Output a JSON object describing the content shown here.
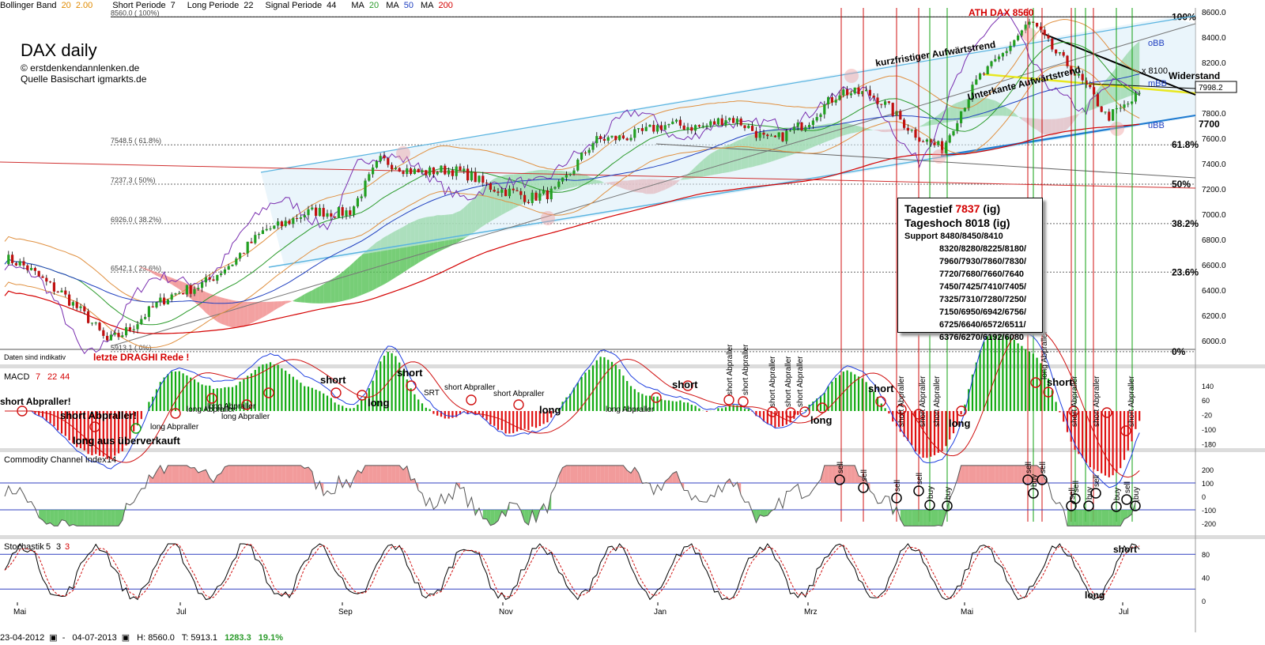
{
  "header": {
    "bb_label": "Bollinger Band",
    "bb_p1": "20",
    "bb_p2": "2.00",
    "short_label": "Short Periode",
    "short_val": "7",
    "long_label": "Long Periode",
    "long_val": "22",
    "signal_label": "Signal Periode",
    "signal_val": "44",
    "ma_label": "MA",
    "ma1": "20",
    "ma2": "50",
    "ma3": "200"
  },
  "title": "DAX daily",
  "credit1": "© erstdenkendannlenken.de",
  "credit2": "Quelle Basischart igmarkts.de",
  "disclaimer": "Daten sind indikativ",
  "ath_label": "ATH DAX 8560",
  "draghi_label": "letzte DRAGHI Rede !",
  "fib_levels": [
    {
      "value": 8560,
      "label": "100%",
      "left_label": "8560.0 ( 100%)"
    },
    {
      "value": 7548.5,
      "label": "61.8%",
      "left_label": "7548.5 ( 61.8%)"
    },
    {
      "value": 7237.3,
      "label": "50%",
      "left_label": "7237.3 ( 50%)"
    },
    {
      "value": 6926.0,
      "label": "38.2%",
      "left_label": "6926.0 ( 38.2%)"
    },
    {
      "value": 6542.1,
      "label": "23.6%",
      "left_label": "6542.1 ( 23.6%)"
    },
    {
      "value": 5913.1,
      "label": "0%",
      "left_label": "5913.1 ( 0%)"
    }
  ],
  "annotations": {
    "trend1": "kurzfristiger Aufwärtstrend",
    "trend2": "Unterkante Aufwärtstrend",
    "resistance": "Widerstand",
    "level_x": "x 8100",
    "level_7700": "7700",
    "price_tag": "7998.2",
    "obb": "oBB",
    "mbb": "mBB",
    "ubb": "uBB"
  },
  "info_box": {
    "low_label": "Tagestief",
    "low_val": "7837",
    "low_src": "(ig)",
    "high_label": "Tageshoch",
    "high_val": "8018",
    "high_src": "(ig)",
    "support_label": "Support",
    "support_lines": [
      "8480/8450/8410",
      "8320/8280/8225/8180/",
      "7960/7930/7860/7830/",
      "7720/7680/7660/7640",
      "7450/7425/7410/7405/",
      "7325/7310/7280/7250/",
      "7150/6950/6942/6756/",
      "6725/6640/6572/6511/",
      "6376/6270/6192/6080"
    ]
  },
  "macd": {
    "label": "MACD",
    "p1": "7",
    "p2": "22",
    "p3": "44",
    "ticks": [
      "140",
      "60",
      "-20",
      "-100",
      "-180"
    ],
    "signals": [
      "short Abpraller!",
      "short Abpraller!",
      "long aus überverkauft",
      "long Abpraller",
      "long Abpraller",
      "long Abpraller",
      "long Abpraller",
      "short",
      "long",
      "short",
      "SRT",
      "short Abpraller",
      "short Abpraller",
      "long",
      "long Abpraller",
      "short",
      "short Abpraller",
      "short Abpraller",
      "short Abpraller",
      "short Abpraller",
      "short Abpraller",
      "long",
      "short",
      "short Abpraller",
      "short Abpraller",
      "short Abpraller",
      "long",
      "long Abpraller",
      "short",
      "short Abpraller",
      "short Abpraller",
      "short Abpraller"
    ]
  },
  "cci": {
    "label": "Commodity Channel Index",
    "period": "14",
    "ticks": [
      "200",
      "100",
      "0",
      "-100",
      "-200"
    ],
    "signals": [
      "sell",
      "sell",
      "sell",
      "sell",
      "sell",
      "buy",
      "sell",
      "buy",
      "sell",
      "sell",
      "sell",
      "buy",
      "sell",
      "buy",
      "sell",
      "buy"
    ]
  },
  "stoch": {
    "label": "Stochastik",
    "p1": "5",
    "p2": "3",
    "p3": "3",
    "ticks": [
      "80",
      "40",
      "0"
    ],
    "short_label": "short",
    "long_label": "long"
  },
  "x_axis": [
    "Mai",
    "Jul",
    "Sep",
    "Nov",
    "Jan",
    "Mrz",
    "Mai",
    "Jul"
  ],
  "y_axis": [
    "8600.0",
    "8400.0",
    "8200.0",
    "8000.0",
    "7800.0",
    "7600.0",
    "7400.0",
    "7200.0",
    "7000.0",
    "6800.0",
    "6600.0",
    "6400.0",
    "6200.0",
    "6000.0"
  ],
  "footer": {
    "start": "23-04-2012",
    "end": "04-07-2013",
    "high": "H: 8560.0",
    "low": "T: 5913.1",
    "diff": "1283.3",
    "pct": "19.1%"
  },
  "colors": {
    "cloud_green": "#55c255",
    "cloud_red": "#f08a8a",
    "channel": "#5ab4e0",
    "macd_pos": "#11aa11",
    "macd_neg": "#e01010",
    "sell_line": "#d01010",
    "buy_line": "#10a010"
  },
  "chart_data": {
    "type": "candlestick",
    "title": "DAX daily",
    "ylim": [
      5850,
      8650
    ],
    "x_range": [
      "2012-04-23",
      "2013-07-04"
    ],
    "close_path": [
      [
        "2012-04-23",
        6650
      ],
      [
        "2012-05-15",
        6400
      ],
      [
        "2012-06-01",
        5980
      ],
      [
        "2012-06-15",
        6200
      ],
      [
        "2012-07-01",
        6400
      ],
      [
        "2012-07-20",
        6600
      ],
      [
        "2012-08-01",
        6900
      ],
      [
        "2012-08-20",
        7000
      ],
      [
        "2012-09-03",
        7050
      ],
      [
        "2012-09-14",
        7400
      ],
      [
        "2012-10-01",
        7350
      ],
      [
        "2012-10-20",
        7300
      ],
      [
        "2012-11-10",
        7100
      ],
      [
        "2012-11-20",
        7200
      ],
      [
        "2012-12-05",
        7550
      ],
      [
        "2012-12-20",
        7650
      ],
      [
        "2013-01-10",
        7700
      ],
      [
        "2013-01-25",
        7750
      ],
      [
        "2013-02-10",
        7600
      ],
      [
        "2013-02-25",
        7700
      ],
      [
        "2013-03-10",
        8000
      ],
      [
        "2013-03-20",
        7950
      ],
      [
        "2013-04-05",
        7700
      ],
      [
        "2013-04-18",
        7500
      ],
      [
        "2013-05-02",
        8100
      ],
      [
        "2013-05-15",
        8350
      ],
      [
        "2013-05-22",
        8500
      ],
      [
        "2013-06-05",
        8200
      ],
      [
        "2013-06-20",
        7750
      ],
      [
        "2013-07-04",
        7998
      ]
    ]
  }
}
